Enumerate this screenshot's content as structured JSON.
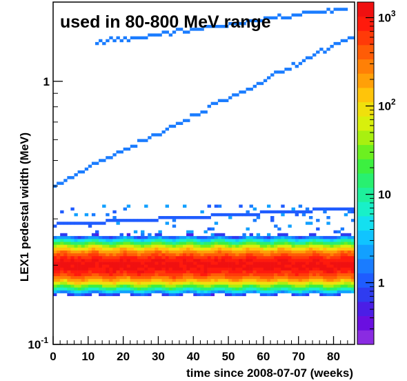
{
  "chart_data": {
    "type": "heatmap",
    "title": "used in 80-800 MeV range",
    "xlabel": "time since 2008-07-07 (weeks)",
    "ylabel": "LEX1 pedestal width (MeV)",
    "xlim": [
      0,
      86
    ],
    "ylim": [
      0.1,
      2.0
    ],
    "y_scale": "log",
    "z_scale": "log",
    "zlim": [
      0.2,
      1500
    ],
    "x_ticks": [
      0,
      10,
      20,
      30,
      40,
      50,
      60,
      70,
      80
    ],
    "y_ticks": [
      {
        "value": 0.1,
        "base": "10",
        "exp": "-1"
      },
      {
        "value": 1,
        "base": "1",
        "exp": ""
      }
    ],
    "z_ticks": [
      {
        "value": 1,
        "base": "1",
        "exp": ""
      },
      {
        "value": 10,
        "base": "10",
        "exp": ""
      },
      {
        "value": 100,
        "base": "10",
        "exp": "2"
      },
      {
        "value": 1000,
        "base": "10",
        "exp": "3"
      }
    ],
    "palette": [
      "#8a2be2",
      "#6a0fe0",
      "#4b1ee6",
      "#2f3cf0",
      "#1f5cff",
      "#1a7cff",
      "#12a0ff",
      "#10c4ff",
      "#14e0f0",
      "#18f0c8",
      "#1ef09c",
      "#28f070",
      "#3cf040",
      "#6cf020",
      "#a8f010",
      "#d8f00c",
      "#f0e00c",
      "#ffc40a",
      "#ffa008",
      "#ff8006",
      "#ff5c06",
      "#ff3a08",
      "#ff1a0c",
      "#f01010"
    ],
    "bands": [
      {
        "name": "main band",
        "x_range": [
          0,
          86
        ],
        "center": 0.2,
        "rel_width": 0.14,
        "peak_count": 1200
      },
      {
        "name": "upper trend",
        "x_range": [
          0,
          86
        ],
        "start": 0.4,
        "end": 1.5,
        "count": 1.5
      },
      {
        "name": "top trend",
        "x_range": [
          12,
          84
        ],
        "start": 1.4,
        "end": 1.9,
        "count": 1.5
      },
      {
        "name": "lower line",
        "x_range": [
          0,
          86
        ],
        "start": 0.285,
        "end": 0.33,
        "count": 1.2
      }
    ]
  }
}
